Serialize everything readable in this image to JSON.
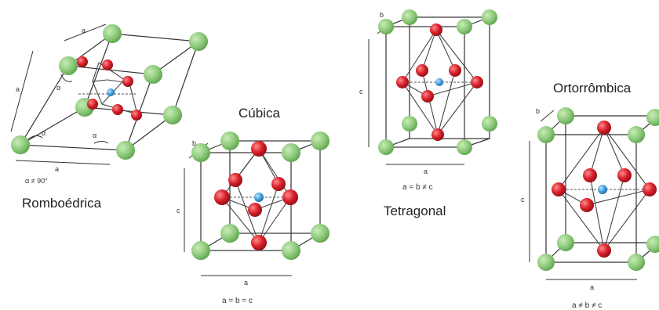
{
  "rhombohedral": {
    "title": "Romboédrica",
    "label_a_top": "a",
    "label_a_left": "a",
    "label_a_bottom": "a",
    "angle_label": "α",
    "condition": "α ≠ 90°"
  },
  "cubic": {
    "title": "Cúbica",
    "label_b": "b",
    "label_c": "c",
    "label_a": "a",
    "relation": "a = b = c"
  },
  "tetragonal": {
    "title": "Tetragonal",
    "label_b": "b",
    "label_c": "c",
    "label_a": "a",
    "relation": "a = b ≠ c"
  },
  "orthorhombic": {
    "title": "Ortorrômbica",
    "label_b": "b",
    "label_c": "c",
    "label_a": "a",
    "relation": "a ≠ b ≠ c"
  },
  "colors": {
    "corner_atom": "#8cc97a",
    "face_atom": "#d8202a",
    "center_atom": "#3a9ad9"
  }
}
